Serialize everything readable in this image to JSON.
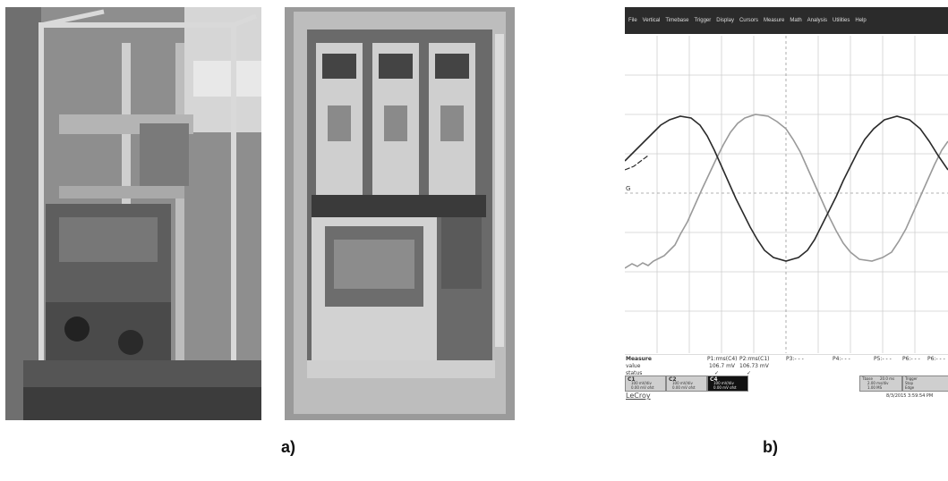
{
  "captions": {
    "left": "a)",
    "right": "b)"
  },
  "scope": {
    "menu": [
      "File",
      "Vertical",
      "Timebase",
      "Trigger",
      "Display",
      "Cursors",
      "Measure",
      "Math",
      "Analysis",
      "Utilities",
      "Help"
    ],
    "ground_marker": "G",
    "measure": {
      "row_labels": [
        "Measure",
        "value",
        "status"
      ],
      "columns": [
        {
          "header": "P1:rms(C4)",
          "value": "106.7 mV",
          "status": "✓"
        },
        {
          "header": "P2:rms(C1)",
          "value": "106.73 mV",
          "status": "✓"
        },
        {
          "header": "P3:- - -",
          "value": "",
          "status": ""
        },
        {
          "header": "P4:- - -",
          "value": "",
          "status": ""
        },
        {
          "header": "P5:- - -",
          "value": "",
          "status": ""
        },
        {
          "header": "P6:- - -",
          "value": "",
          "status": ""
        },
        {
          "header": "P6:- - -",
          "value": "",
          "status": ""
        }
      ]
    },
    "channels": [
      {
        "name": "C1",
        "line1": "100 mV/div",
        "line2": "0.00 mV ofst"
      },
      {
        "name": "C2",
        "line1": "100 mV/div",
        "line2": "0.00 mV ofst"
      },
      {
        "name": "C4",
        "line1": "100 mV/div",
        "line2": "0.00 mV ofst"
      }
    ],
    "timebase": {
      "label": "Tbase",
      "value": "20.0 ms",
      "line1": "2.00 ms/div",
      "line2": "1.00 MS"
    },
    "trigger": {
      "label": "Trigger",
      "line1": "Stop",
      "line2": "Edge"
    },
    "brand": "LeCroy",
    "timestamp": "8/3/2015 3:59:54 PM",
    "colors": {
      "trace_dark": "#2a2a2a",
      "trace_light": "#9a9a9a",
      "grid": "#cfcfcf",
      "menubar": "#2b2b2b"
    }
  }
}
